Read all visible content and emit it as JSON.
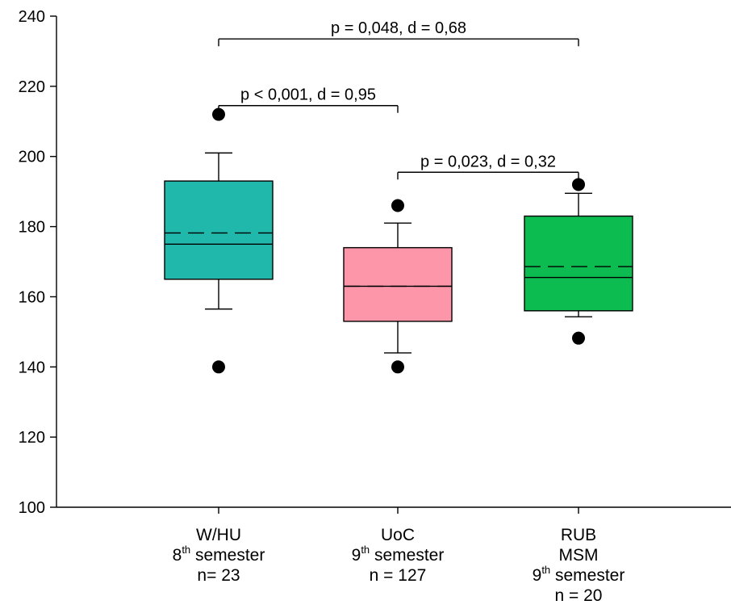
{
  "chart_data": {
    "type": "box",
    "title": "",
    "xlabel": "",
    "ylabel": "",
    "ylim": [
      100,
      240
    ],
    "yticks": [
      100,
      120,
      140,
      160,
      180,
      200,
      220,
      240
    ],
    "grid": false,
    "categories": [
      {
        "lines": [
          {
            "text": "W/HU"
          },
          {
            "num": "8",
            "sup": "th",
            "rest": " semester"
          },
          {
            "text": "n= 23"
          }
        ]
      },
      {
        "lines": [
          {
            "text": "UoC"
          },
          {
            "num": "9",
            "sup": "th",
            "rest": " semester"
          },
          {
            "text": "n = 127"
          }
        ]
      },
      {
        "lines": [
          {
            "text": "RUB"
          },
          {
            "text": "MSM"
          },
          {
            "num": "9",
            "sup": "th",
            "rest": " semester"
          },
          {
            "text": "n = 20"
          }
        ]
      }
    ],
    "boxes": [
      {
        "whisker_low": 156.5,
        "q1": 165,
        "median": 175,
        "mean": 178.2,
        "q3": 193,
        "whisker_high": 201,
        "outliers": [
          212,
          140
        ],
        "color": "#20b8aa"
      },
      {
        "whisker_low": 144,
        "q1": 153,
        "median": 163,
        "mean": 163,
        "q3": 174,
        "whisker_high": 181,
        "outliers": [
          186,
          140
        ],
        "color": "#fc96a8"
      },
      {
        "whisker_low": 154.3,
        "q1": 156,
        "median": 165.5,
        "mean": 168.6,
        "q3": 183,
        "whisker_high": 189.5,
        "outliers": [
          192,
          148.2
        ],
        "color": "#0dbc50"
      }
    ],
    "comparisons": [
      {
        "from": 0,
        "to": 2,
        "y": 233.5,
        "label": "p = 0,048, d = 0,68"
      },
      {
        "from": 0,
        "to": 1,
        "y": 214.5,
        "label": "p < 0,001, d = 0,95"
      },
      {
        "from": 1,
        "to": 2,
        "y": 195.5,
        "label": "p = 0,023, d = 0,32"
      }
    ]
  }
}
